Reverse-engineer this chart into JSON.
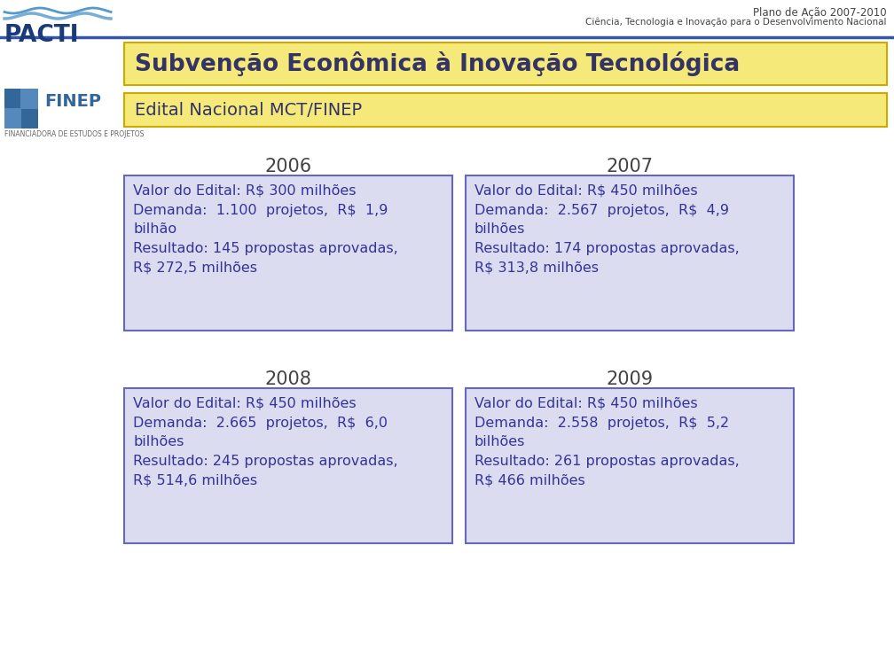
{
  "header_line1": "Plano de Ação 2007-2010",
  "header_line2": "Ciência, Tecnologia e Inovação para o Desenvolvimento Nacional",
  "title": "Subvenção Econômica à Inovação Tecnológica",
  "subtitle": "Edital Nacional MCT/FINEP",
  "title_bg": "#f5e97a",
  "subtitle_bg": "#f5e97a",
  "box_bg": "#dcdcf0",
  "box_border": "#6666bb",
  "bg_color": "#ffffff",
  "header_color": "#444444",
  "title_text_color": "#333366",
  "box_text_color": "#333399",
  "year_text_color": "#444444",
  "pacti_color": "#1a3a7a",
  "finep_color": "#336699",
  "divider_color": "#3355aa",
  "boxes": [
    {
      "year": "2006",
      "col": 0,
      "row": 0,
      "text": "Valor do Edital: R$ 300 milhões\nDemanda:  1.100  projetos,  R$  1,9\nbilhão\nResultado: 145 propostas aprovadas,\nR$ 272,5 milhões"
    },
    {
      "year": "2007",
      "col": 1,
      "row": 0,
      "text": "Valor do Edital: R$ 450 milhões\nDemanda:  2.567  projetos,  R$  4,9\nbilhões\nResultado: 174 propostas aprovadas,\nR$ 313,8 milhões"
    },
    {
      "year": "2008",
      "col": 0,
      "row": 1,
      "text": "Valor do Edital: R$ 450 milhões\nDemanda:  2.665  projetos,  R$  6,0\nbilhões\nResultado: 245 propostas aprovadas,\nR$ 514,6 milhões"
    },
    {
      "year": "2009",
      "col": 1,
      "row": 1,
      "text": "Valor do Edital: R$ 450 milhões\nDemanda:  2.558  projetos,  R$  5,2\nbilhões\nResultado: 261 propostas aprovadas,\nR$ 466 milhões"
    }
  ]
}
